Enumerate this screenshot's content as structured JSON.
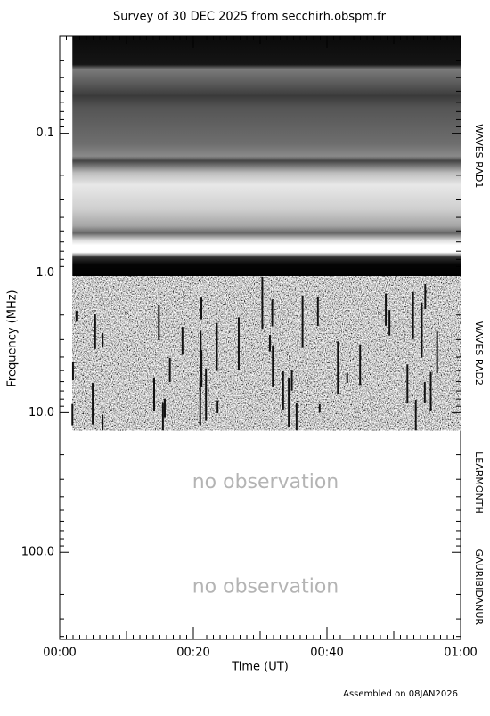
{
  "chart_data": {
    "type": "spectrogram",
    "title": "Survey of 30 DEC 2025 from secchirh.obspm.fr",
    "footer": "Assembled on 08JAN2026",
    "x_label": "Time (UT)",
    "y_label": "Frequency (MHz)",
    "xlim": [
      0,
      60
    ],
    "xticks": [
      {
        "value": 0,
        "label": "00:00"
      },
      {
        "value": 20,
        "label": "00:20"
      },
      {
        "value": 40,
        "label": "00:40"
      },
      {
        "value": 60,
        "label": "01:00"
      }
    ],
    "xminor_step": 1,
    "xmedium_step": 10,
    "ylim": [
      0.02,
      420
    ],
    "ylog": true,
    "yinverted": true,
    "yticks": [
      0.1,
      {
        "value": 1,
        "label": "1.0"
      },
      {
        "value": 10,
        "label": "10.0"
      },
      {
        "value": 100,
        "label": "100.0"
      }
    ],
    "panels": [
      {
        "name": "WAVES RAD1",
        "freq_range": [
          0.02,
          1.06
        ],
        "time_range": [
          1.9,
          60
        ],
        "style": "bands"
      },
      {
        "name": "WAVES RAD2",
        "freq_range": [
          1.06,
          13.4
        ],
        "time_range": [
          1.9,
          60
        ],
        "style": "noise"
      },
      {
        "name": "LEARMONTH",
        "freq_range": [
          13.4,
          75
        ],
        "note": "no observation"
      },
      {
        "name": "GAURIBIDANUR",
        "freq_range": [
          75,
          420
        ],
        "note": "no observation"
      }
    ]
  }
}
